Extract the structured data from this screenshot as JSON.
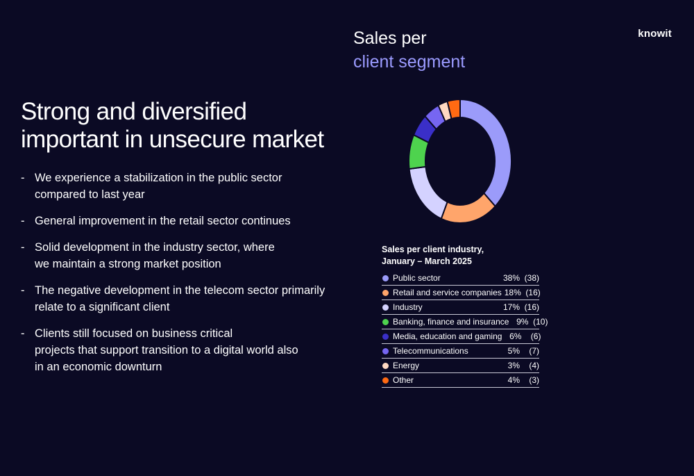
{
  "logo": "knowit",
  "chart_header": {
    "line1": "Sales per",
    "line2": "client segment"
  },
  "headline": {
    "line1": "Strong and diversified",
    "line2": "important in unsecure market"
  },
  "bullets": [
    {
      "line1": "We experience a stabilization in the public sector",
      "line2": "compared to last year",
      "line3": ""
    },
    {
      "line1": "General improvement in the retail sector continues",
      "line2": "",
      "line3": ""
    },
    {
      "line1": "Solid development in the industry sector, where",
      "line2": "we maintain a strong market position",
      "line3": ""
    },
    {
      "line1": "The negative development in the telecom sector primarily",
      "line2": "relate to a significant client",
      "line3": ""
    },
    {
      "line1": "Clients still focused on business critical",
      "line2": "projects that support transition to a digital world also",
      "line3": "in an economic downturn"
    }
  ],
  "chart_data": {
    "type": "pie",
    "title": "Sales per client industry,",
    "subtitle": "January – March 2025",
    "categories": [
      "Public sector",
      "Retail and service companies",
      "Industry",
      "Banking, finance and insurance",
      "Media, education and gaming",
      "Telecommunications",
      "Energy",
      "Other"
    ],
    "values": [
      38,
      18,
      17,
      9,
      6,
      5,
      3,
      4
    ],
    "percent_labels": [
      "38%",
      "18%",
      "17%",
      "9%",
      "6%",
      "5%",
      "3%",
      "4%"
    ],
    "previous_labels": [
      "(38)",
      "(16)",
      "(16)",
      "(10)",
      "(6)",
      "(7)",
      "(4)",
      "(3)"
    ],
    "colors": [
      "#9b9bfa",
      "#ffa56b",
      "#d4d2ff",
      "#4ed34e",
      "#3a2fc8",
      "#7666f2",
      "#ffd9c2",
      "#ff6a13"
    ],
    "legend_position": "below"
  }
}
